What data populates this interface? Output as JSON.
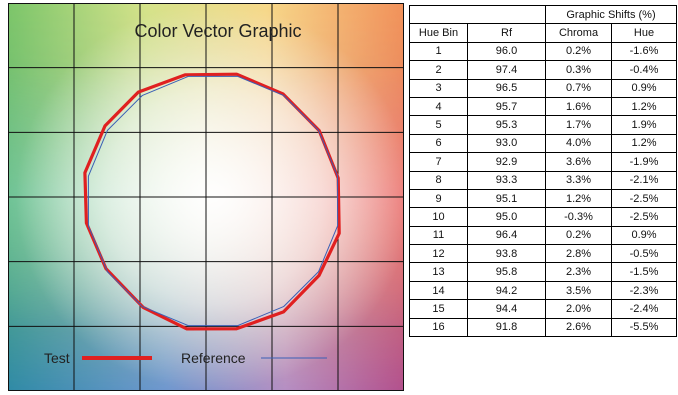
{
  "chart_data": {
    "type": "line",
    "title": "Color Vector Graphic",
    "legend": [
      "Test",
      "Reference"
    ],
    "legend_position": "bottom",
    "colors": {
      "test": "#e02020",
      "reference": "#3a5fb5"
    },
    "grid": true,
    "hue_bins": [
      1,
      2,
      3,
      4,
      5,
      6,
      7,
      8,
      9,
      10,
      11,
      12,
      13,
      14,
      15,
      16
    ],
    "series": [
      {
        "name": "Test",
        "chroma_shift_percent": [
          0.2,
          0.3,
          0.7,
          1.6,
          1.7,
          4.0,
          3.6,
          3.3,
          1.2,
          -0.3,
          0.2,
          2.8,
          2.3,
          3.5,
          2.0,
          2.6
        ],
        "hue_shift_percent": [
          -1.6,
          -0.4,
          0.9,
          1.2,
          1.9,
          1.2,
          -1.9,
          -2.1,
          -2.5,
          -2.5,
          0.9,
          -0.5,
          -1.5,
          -2.3,
          -2.4,
          -5.5
        ]
      },
      {
        "name": "Reference",
        "chroma_shift_percent": [
          0,
          0,
          0,
          0,
          0,
          0,
          0,
          0,
          0,
          0,
          0,
          0,
          0,
          0,
          0,
          0
        ],
        "hue_shift_percent": [
          0,
          0,
          0,
          0,
          0,
          0,
          0,
          0,
          0,
          0,
          0,
          0,
          0,
          0,
          0,
          0
        ]
      }
    ]
  },
  "table": {
    "group_header": "Graphic Shifts (%)",
    "headers": [
      "Hue Bin",
      "Rf",
      "Chroma",
      "Hue"
    ],
    "rows": [
      [
        "1",
        "96.0",
        "0.2%",
        "-1.6%"
      ],
      [
        "2",
        "97.4",
        "0.3%",
        "-0.4%"
      ],
      [
        "3",
        "96.5",
        "0.7%",
        "0.9%"
      ],
      [
        "4",
        "95.7",
        "1.6%",
        "1.2%"
      ],
      [
        "5",
        "95.3",
        "1.7%",
        "1.9%"
      ],
      [
        "6",
        "93.0",
        "4.0%",
        "1.2%"
      ],
      [
        "7",
        "92.9",
        "3.6%",
        "-1.9%"
      ],
      [
        "8",
        "93.3",
        "3.3%",
        "-2.1%"
      ],
      [
        "9",
        "95.1",
        "1.2%",
        "-2.5%"
      ],
      [
        "10",
        "95.0",
        "-0.3%",
        "-2.5%"
      ],
      [
        "11",
        "96.4",
        "0.2%",
        "0.9%"
      ],
      [
        "12",
        "93.8",
        "2.8%",
        "-0.5%"
      ],
      [
        "13",
        "95.8",
        "2.3%",
        "-1.5%"
      ],
      [
        "14",
        "94.2",
        "3.5%",
        "-2.3%"
      ],
      [
        "15",
        "94.4",
        "2.0%",
        "-2.4%"
      ],
      [
        "16",
        "91.8",
        "2.6%",
        "-5.5%"
      ]
    ]
  }
}
